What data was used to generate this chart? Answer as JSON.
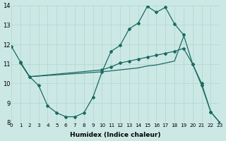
{
  "xlabel": "Humidex (Indice chaleur)",
  "bg_color": "#cce8e5",
  "grid_color": "#b0d5d0",
  "line_color": "#1a6b62",
  "xlim": [
    0,
    23
  ],
  "ylim": [
    8,
    14
  ],
  "yticks": [
    8,
    9,
    10,
    11,
    12,
    13,
    14
  ],
  "xticks": [
    0,
    1,
    2,
    3,
    4,
    5,
    6,
    7,
    8,
    9,
    10,
    11,
    12,
    13,
    14,
    15,
    16,
    17,
    18,
    19,
    20,
    21,
    22,
    23
  ],
  "line1_x": [
    0,
    1,
    2,
    3,
    4,
    5,
    6,
    7,
    8,
    9,
    10,
    11,
    12,
    13,
    14,
    15,
    16,
    17,
    18,
    19,
    20,
    21,
    22,
    23
  ],
  "line1_y": [
    11.9,
    11.1,
    10.35,
    9.9,
    8.85,
    8.5,
    8.3,
    8.3,
    8.5,
    9.3,
    10.6,
    11.65,
    11.95,
    12.8,
    13.1,
    13.95,
    13.65,
    13.9,
    13.05,
    12.5,
    11.0,
    9.9,
    8.55,
    8.0
  ],
  "line2_x": [
    1,
    2,
    10,
    11,
    12,
    13,
    14,
    15,
    16,
    17,
    18,
    19
  ],
  "line2_y": [
    11.05,
    10.35,
    10.6,
    10.65,
    10.7,
    10.75,
    10.8,
    10.9,
    10.95,
    11.05,
    11.15,
    12.4
  ],
  "line3_x": [
    1,
    2,
    10,
    11,
    12,
    13,
    14,
    15,
    16,
    17,
    18,
    19,
    20,
    21,
    22,
    23
  ],
  "line3_y": [
    11.05,
    10.35,
    10.7,
    10.85,
    11.05,
    11.15,
    11.25,
    11.35,
    11.45,
    11.55,
    11.65,
    11.8,
    11.0,
    10.0,
    8.55,
    8.0
  ]
}
